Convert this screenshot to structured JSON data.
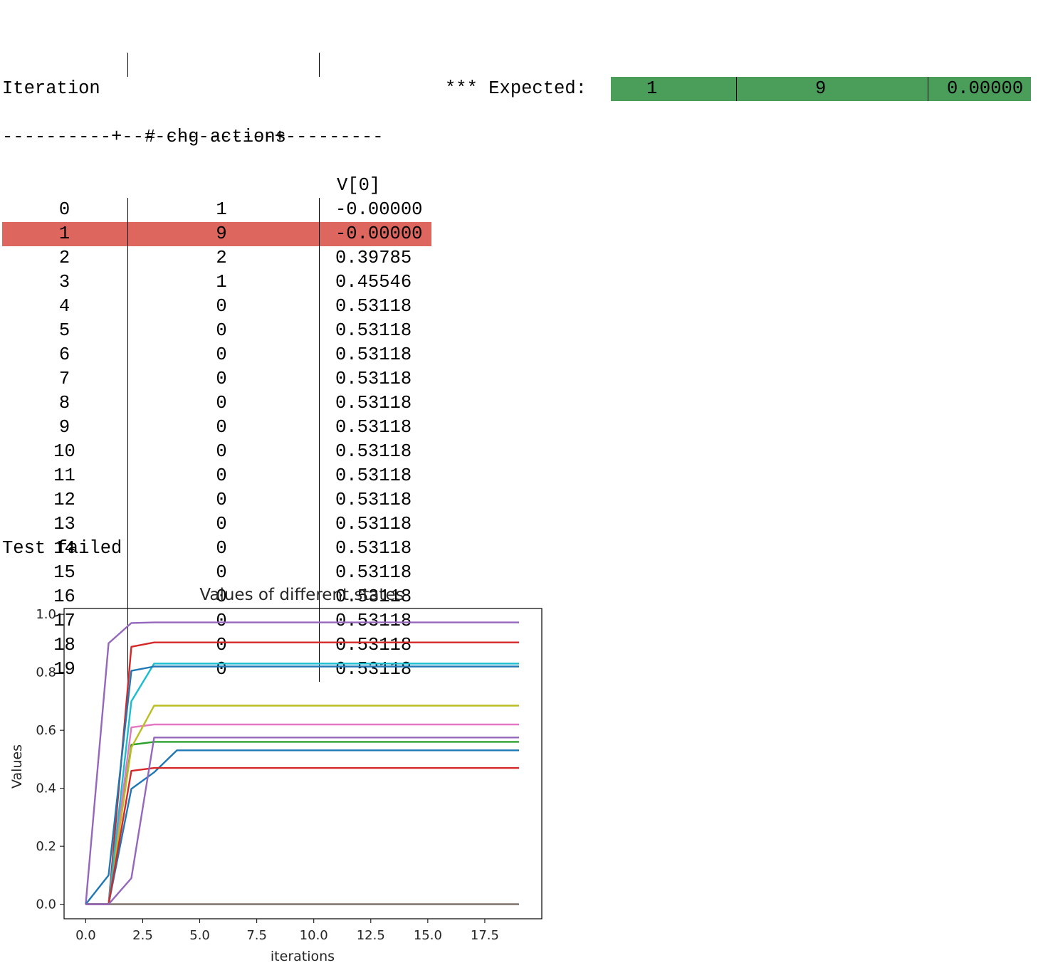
{
  "table": {
    "headers": [
      "Iteration",
      "# chg actions",
      "V[0]"
    ],
    "header_rule": "----------+--------------+---------",
    "rows": [
      {
        "iteration": "0",
        "chg": "1",
        "v": "-0.00000"
      },
      {
        "iteration": "1",
        "chg": "9",
        "v": "-0.00000"
      },
      {
        "iteration": "2",
        "chg": "2",
        "v": "0.39785"
      },
      {
        "iteration": "3",
        "chg": "1",
        "v": "0.45546"
      },
      {
        "iteration": "4",
        "chg": "0",
        "v": "0.53118"
      },
      {
        "iteration": "5",
        "chg": "0",
        "v": "0.53118"
      },
      {
        "iteration": "6",
        "chg": "0",
        "v": "0.53118"
      },
      {
        "iteration": "7",
        "chg": "0",
        "v": "0.53118"
      },
      {
        "iteration": "8",
        "chg": "0",
        "v": "0.53118"
      },
      {
        "iteration": "9",
        "chg": "0",
        "v": "0.53118"
      },
      {
        "iteration": "10",
        "chg": "0",
        "v": "0.53118"
      },
      {
        "iteration": "11",
        "chg": "0",
        "v": "0.53118"
      },
      {
        "iteration": "12",
        "chg": "0",
        "v": "0.53118"
      },
      {
        "iteration": "13",
        "chg": "0",
        "v": "0.53118"
      },
      {
        "iteration": "14",
        "chg": "0",
        "v": "0.53118"
      },
      {
        "iteration": "15",
        "chg": "0",
        "v": "0.53118"
      },
      {
        "iteration": "16",
        "chg": "0",
        "v": "0.53118"
      },
      {
        "iteration": "17",
        "chg": "0",
        "v": "0.53118"
      },
      {
        "iteration": "18",
        "chg": "0",
        "v": "0.53118"
      },
      {
        "iteration": "19",
        "chg": "0",
        "v": "0.53118"
      }
    ],
    "highlight_row": 1,
    "highlight_color": "#dd665e"
  },
  "expected": {
    "label": "*** Expected:",
    "iteration": "1",
    "chg": "9",
    "v": "0.00000",
    "color": "#4a9e5a"
  },
  "status": "Test failed",
  "chart_data": {
    "type": "line",
    "title": "Values of different states",
    "xlabel": "iterations",
    "ylabel": "Values",
    "xlim": [
      -0.95,
      20.0
    ],
    "ylim": [
      -0.05,
      1.02
    ],
    "xticks": [
      "0.0",
      "2.5",
      "5.0",
      "7.5",
      "10.0",
      "12.5",
      "15.0",
      "17.5"
    ],
    "yticks": [
      "0.0",
      "0.2",
      "0.4",
      "0.6",
      "0.8",
      "1.0"
    ],
    "grid": false,
    "x": [
      0,
      1,
      2,
      3,
      4,
      5,
      6,
      7,
      8,
      9,
      10,
      11,
      12,
      13,
      14,
      15,
      16,
      17,
      18,
      19
    ],
    "series": [
      {
        "color": "#1f77b4",
        "values": [
          0,
          0,
          0.398,
          0.455,
          0.531,
          0.531,
          0.531,
          0.531,
          0.531,
          0.531,
          0.531,
          0.531,
          0.531,
          0.531,
          0.531,
          0.531,
          0.531,
          0.531,
          0.531,
          0.531
        ]
      },
      {
        "color": "#ff7f0e",
        "values": [
          0,
          0,
          0,
          0,
          0,
          0,
          0,
          0,
          0,
          0,
          0,
          0,
          0,
          0,
          0,
          0,
          0,
          0,
          0,
          0
        ]
      },
      {
        "color": "#2ca02c",
        "values": [
          0,
          0,
          0.55,
          0.56,
          0.56,
          0.56,
          0.56,
          0.56,
          0.56,
          0.56,
          0.56,
          0.56,
          0.56,
          0.56,
          0.56,
          0.56,
          0.56,
          0.56,
          0.56,
          0.56
        ]
      },
      {
        "color": "#d62728",
        "values": [
          0,
          0,
          0.888,
          0.903,
          0.903,
          0.903,
          0.903,
          0.903,
          0.903,
          0.903,
          0.903,
          0.903,
          0.903,
          0.903,
          0.903,
          0.903,
          0.903,
          0.903,
          0.903,
          0.903
        ]
      },
      {
        "color": "#9467bd",
        "values": [
          0,
          0.9,
          0.97,
          0.972,
          0.972,
          0.972,
          0.972,
          0.972,
          0.972,
          0.972,
          0.972,
          0.972,
          0.972,
          0.972,
          0.972,
          0.972,
          0.972,
          0.972,
          0.972,
          0.972
        ]
      },
      {
        "color": "#8c564b",
        "values": [
          0,
          0,
          0,
          0,
          0,
          0,
          0,
          0,
          0,
          0,
          0,
          0,
          0,
          0,
          0,
          0,
          0,
          0,
          0,
          0
        ]
      },
      {
        "color": "#e377c2",
        "values": [
          0,
          0,
          0.61,
          0.62,
          0.62,
          0.62,
          0.62,
          0.62,
          0.62,
          0.62,
          0.62,
          0.62,
          0.62,
          0.62,
          0.62,
          0.62,
          0.62,
          0.62,
          0.62,
          0.62
        ]
      },
      {
        "color": "#7f7f7f",
        "values": [
          0,
          0,
          0,
          0,
          0,
          0,
          0,
          0,
          0,
          0,
          0,
          0,
          0,
          0,
          0,
          0,
          0,
          0,
          0,
          0
        ]
      },
      {
        "color": "#bcbd22",
        "values": [
          0,
          0,
          0.54,
          0.685,
          0.685,
          0.685,
          0.685,
          0.685,
          0.685,
          0.685,
          0.685,
          0.685,
          0.685,
          0.685,
          0.685,
          0.685,
          0.685,
          0.685,
          0.685,
          0.685
        ]
      },
      {
        "color": "#17becf",
        "values": [
          0,
          0,
          0.7,
          0.83,
          0.83,
          0.83,
          0.83,
          0.83,
          0.83,
          0.83,
          0.83,
          0.83,
          0.83,
          0.83,
          0.83,
          0.83,
          0.83,
          0.83,
          0.83,
          0.83
        ]
      },
      {
        "color": "#1f77b4",
        "values": [
          0,
          0.1,
          0.805,
          0.82,
          0.82,
          0.82,
          0.82,
          0.82,
          0.82,
          0.82,
          0.82,
          0.82,
          0.82,
          0.82,
          0.82,
          0.82,
          0.82,
          0.82,
          0.82,
          0.82
        ]
      },
      {
        "color": "#d62728",
        "values": [
          0,
          0,
          0.46,
          0.47,
          0.47,
          0.47,
          0.47,
          0.47,
          0.47,
          0.47,
          0.47,
          0.47,
          0.47,
          0.47,
          0.47,
          0.47,
          0.47,
          0.47,
          0.47,
          0.47
        ]
      },
      {
        "color": "#9467bd",
        "values": [
          0,
          0,
          0.09,
          0.575,
          0.575,
          0.575,
          0.575,
          0.575,
          0.575,
          0.575,
          0.575,
          0.575,
          0.575,
          0.575,
          0.575,
          0.575,
          0.575,
          0.575,
          0.575,
          0.575
        ]
      }
    ]
  }
}
